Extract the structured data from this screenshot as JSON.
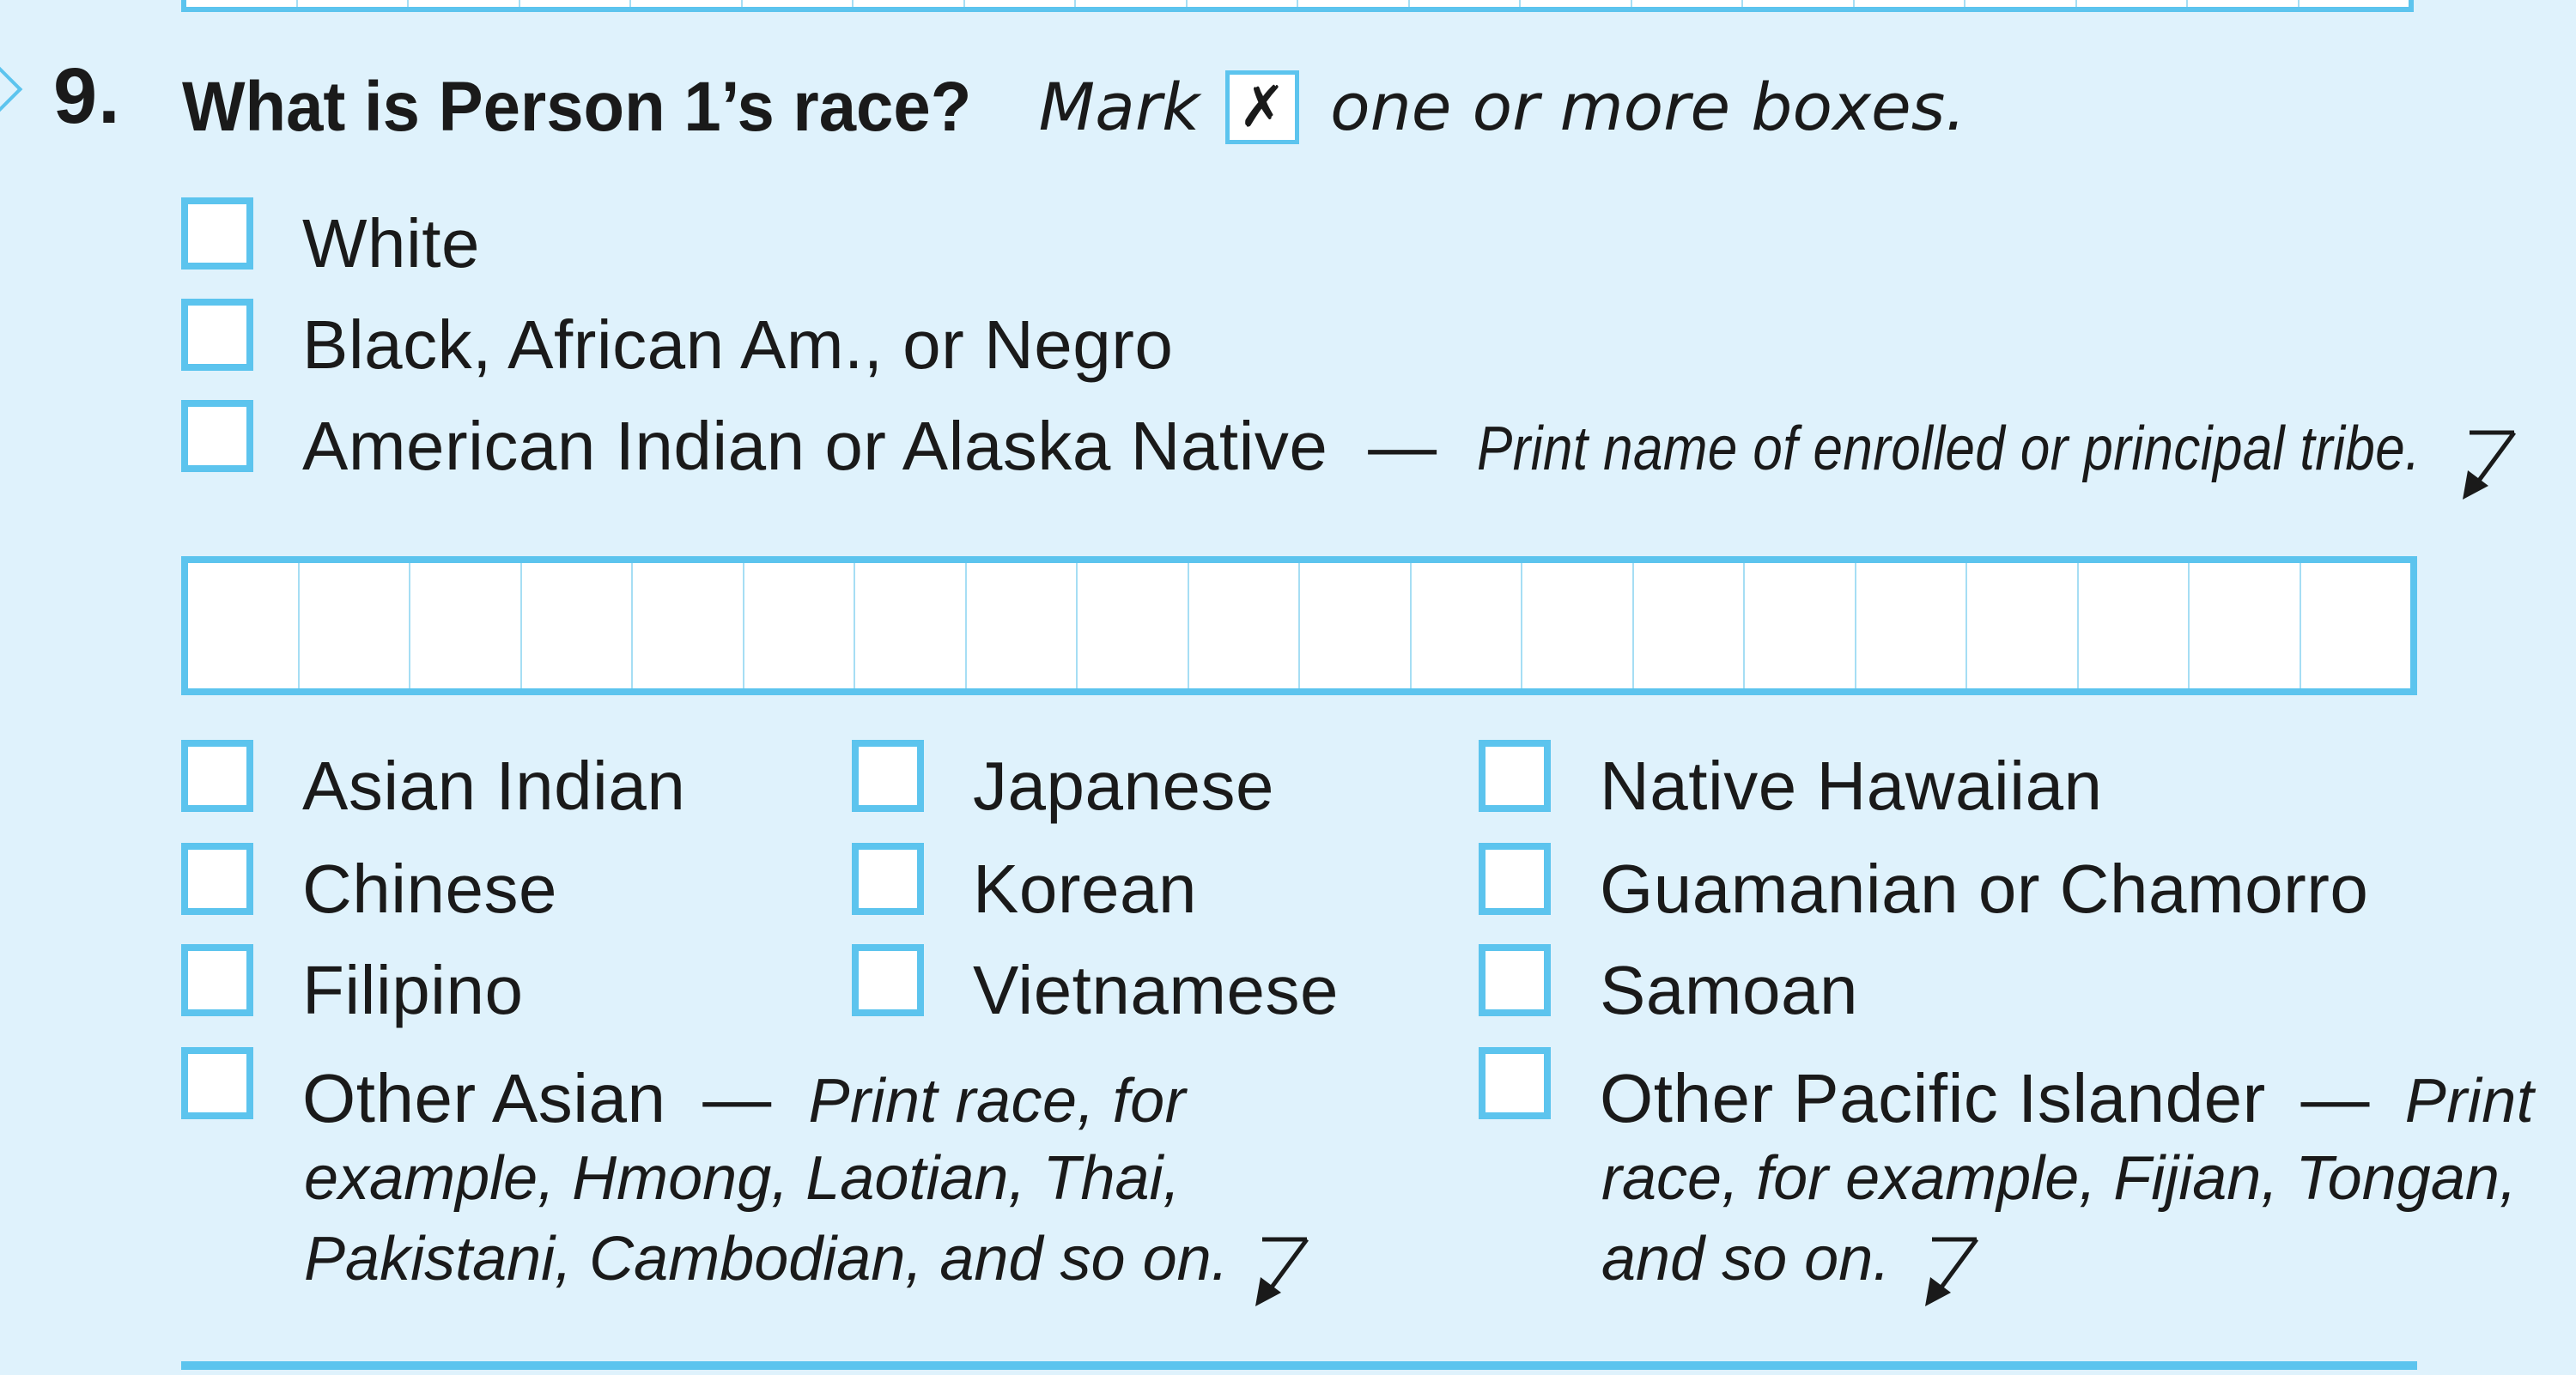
{
  "question": {
    "number": "9.",
    "text": "What is Person 1’s race?",
    "mark_word": "Mark",
    "mark_sample": "✗",
    "instruction_tail": "one or more boxes."
  },
  "options_top": [
    {
      "label": "White"
    },
    {
      "label": "Black, African Am., or Negro"
    },
    {
      "label": "American Indian or Alaska Native",
      "dash": "—",
      "note": "Print name of enrolled or principal tribe."
    }
  ],
  "options_asian": [
    {
      "label": "Asian Indian"
    },
    {
      "label": "Chinese"
    },
    {
      "label": "Filipino"
    },
    {
      "label": "Other Asian",
      "dash": "—",
      "note_line1": "Print race, for",
      "note_line2": "example, Hmong, Laotian, Thai,",
      "note_line3": "Pakistani, Cambodian, and so on."
    }
  ],
  "options_middle": [
    {
      "label": "Japanese"
    },
    {
      "label": "Korean"
    },
    {
      "label": "Vietnamese"
    }
  ],
  "options_pacific": [
    {
      "label": "Native Hawaiian"
    },
    {
      "label": "Guamanian or Chamorro"
    },
    {
      "label": "Samoan"
    },
    {
      "label": "Other Pacific Islander",
      "dash": "—",
      "note_line1": "Print",
      "note_line2": "race, for example, Fijian, Tongan,",
      "note_line3": "and so on."
    }
  ],
  "icons": {
    "write_in_arrow": "down-left-arrow-icon",
    "checkbox": "empty-checkbox"
  },
  "colors": {
    "background": "#dff2fc",
    "box_border": "#5cc4ee",
    "text": "#1a1a1a"
  }
}
